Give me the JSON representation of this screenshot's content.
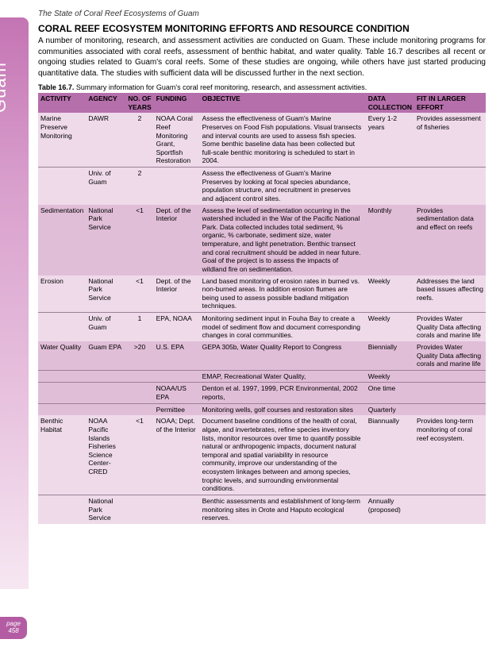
{
  "sidebar": {
    "label": "Guam"
  },
  "page_badge": {
    "label": "page",
    "number": "458"
  },
  "header": {
    "title": "The State of Coral Reef Ecosystems of Guam"
  },
  "section": {
    "title": "CORAL REEF ECOSYSTEM MONITORING EFFORTS AND RESOURCE CONDITION",
    "body": "A number of monitoring, research, and assessment activities are conducted on Guam. These include monitoring programs for communities associated with coral reefs, assessment of benthic habitat, and water quality. Table 16.7 describes all recent or ongoing studies related to Guam's coral reefs. Some of these studies are ongoing, while others have just started producing quantitative data. The studies with sufficient data will be discussed further in the next section."
  },
  "table": {
    "caption_label": "Table 16.7.",
    "caption_text": "Summary information for Guam's coral reef monitoring, research, and assessment activities.",
    "header_bg": "#b56fab",
    "light_row_bg": "#efdaea",
    "dark_row_bg": "#e1bed8",
    "columns": {
      "activity": "ACTIVITY",
      "agency": "AGENCY",
      "years": "NO. OF YEARS",
      "funding": "FUNDING",
      "objective": "OBJECTIVE",
      "collection": "DATA COLLECTION",
      "fit": "FIT IN LARGER EFFORT"
    },
    "groups": [
      {
        "shade": "light",
        "activity": "Marine Preserve Monitoring",
        "rows": [
          {
            "agency": "DAWR",
            "years": "2",
            "funding": "NOAA Coral Reef Monitoring Grant, Sportfish Restoration",
            "objective": "Assess the effectiveness of Guam's Marine Preserves on Food Fish populations.   Visual transects and interval counts are used to assess fish species.  Some benthic baseline data has been collected but full-scale benthic monitoring is scheduled to start in 2004.",
            "collection": "Every 1-2 years",
            "fit": "Provides assessment of fisheries"
          },
          {
            "agency": "Univ. of Guam",
            "years": "2",
            "funding": "",
            "objective": "Assess the effectiveness of Guam's Marine Preserves by looking at focal species abundance, population structure, and recruitment in preserves and adjacent control sites.",
            "collection": "",
            "fit": ""
          }
        ]
      },
      {
        "shade": "dark",
        "activity": "Sedimentation",
        "rows": [
          {
            "agency": "National Park Service",
            "years": "<1",
            "funding": "Dept. of the Interior",
            "objective": "Assess the level of sedimentation occurring in the watershed included in the War of the Pacific National Park.  Data collected includes total sediment, % organic, % carbonate, sediment size, water temperature, and light penetration. Benthic transect and coral recruitment should be added in near future. Goal of the project is to assess the impacts of wildland fire on sedimentation.",
            "collection": "Monthly",
            "fit": "Provides sedimentation data and effect on reefs"
          }
        ]
      },
      {
        "shade": "light",
        "activity": "Erosion",
        "rows": [
          {
            "agency": "National Park Service",
            "years": "<1",
            "funding": "Dept. of the Interior",
            "objective": "Land based monitoring of erosion rates in burned vs. non-burned areas.  In addition erosion flumes are being used to assess possible badland mitigation techniques.",
            "collection": "Weekly",
            "fit": "Addresses the land based issues affecting reefs."
          },
          {
            "agency": "Univ. of Guam",
            "years": "1",
            "funding": "EPA, NOAA",
            "objective": "Monitoring sediment input in Fouha Bay to create a model of sediment flow and document corresponding changes in coral communities.",
            "collection": "Weekly",
            "fit": "Provides Water Quality Data affecting corals and marine life"
          }
        ]
      },
      {
        "shade": "dark",
        "activity": "Water Quality",
        "rows": [
          {
            "agency": "Guam EPA",
            "years": ">20",
            "funding": "U.S. EPA",
            "objective": "GEPA 305b, Water Quality Report to Congress",
            "collection": "Biennially",
            "fit": "Provides Water Quality Data affecting corals and marine life"
          },
          {
            "agency": "",
            "years": "",
            "funding": "",
            "objective": "EMAP, Recreational Water Quality,",
            "collection": "Weekly",
            "fit": ""
          },
          {
            "agency": "",
            "years": "",
            "funding": "NOAA/US EPA",
            "objective": "Denton et al. 1997, 1999, PCR Environmental, 2002 reports,",
            "collection": "One time",
            "fit": ""
          },
          {
            "agency": "",
            "years": "",
            "funding": "Permittee",
            "objective": "Monitoring wells, golf courses and restoration sites",
            "collection": "Quarterly",
            "fit": ""
          }
        ]
      },
      {
        "shade": "light",
        "activity": "Benthic Habitat",
        "rows": [
          {
            "agency": "NOAA Pacific Islands Fisheries Science Center-CRED",
            "years": "<1",
            "funding": "NOAA; Dept. of the Interior",
            "objective": "Document baseline conditions of the health of coral, algae, and invertebrates, refine species inventory lists, monitor resources over time to quantify possible natural or anthropogenic impacts, document natural temporal and spatial variability in resource community, improve our understanding of the ecosystem linkages between and among species, trophic levels, and surrounding environmental conditions.",
            "collection": "Biannually",
            "fit": "Provides long-term monitoring of coral reef ecosystem."
          },
          {
            "agency": "National Park Service",
            "years": "",
            "funding": "",
            "objective": "Benthic assessments and establishment of long-term monitoring sites in Orote and Haputo ecological reserves.",
            "collection": "Annually (proposed)",
            "fit": ""
          }
        ]
      }
    ]
  }
}
